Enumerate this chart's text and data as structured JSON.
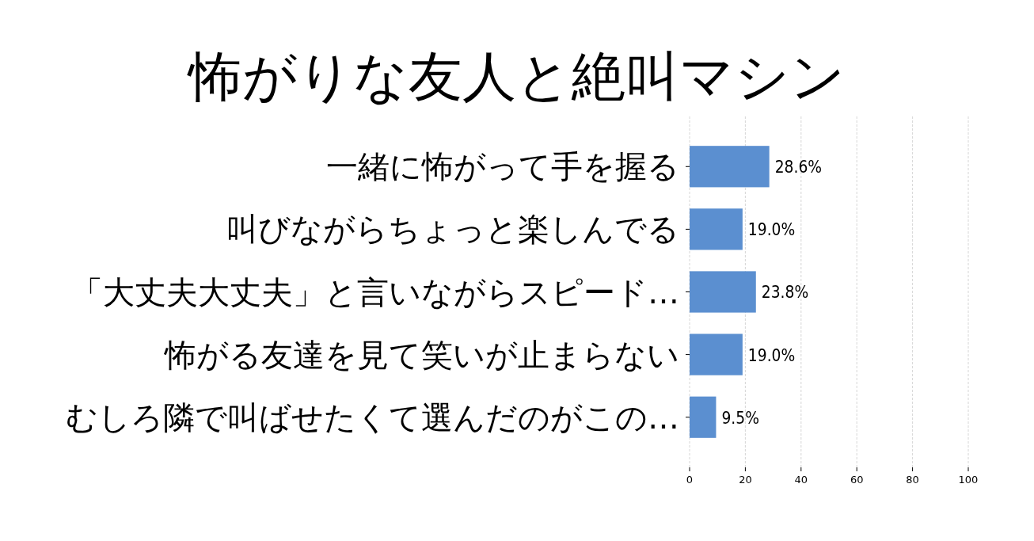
{
  "chart_data": {
    "type": "bar",
    "orientation": "horizontal",
    "title": "怖がりな友人と絶叫マシン",
    "categories": [
      "一緒に怖がって手を握る",
      "叫びながらちょっと楽しんでる",
      "「大丈夫大丈夫」と言いながらスピード…",
      "怖がる友達を見て笑いが止まらない",
      "むしろ隣で叫ばせたくて選んだのがこの…"
    ],
    "values": [
      28.6,
      19.0,
      23.8,
      19.0,
      9.5
    ],
    "value_labels": [
      "28.6%",
      "19.0%",
      "23.8%",
      "19.0%",
      "9.5%"
    ],
    "color": "#5b8fd0",
    "xlim": [
      0,
      100
    ],
    "xticks": [
      0,
      20,
      40,
      60,
      80,
      100
    ],
    "grid": "x"
  }
}
